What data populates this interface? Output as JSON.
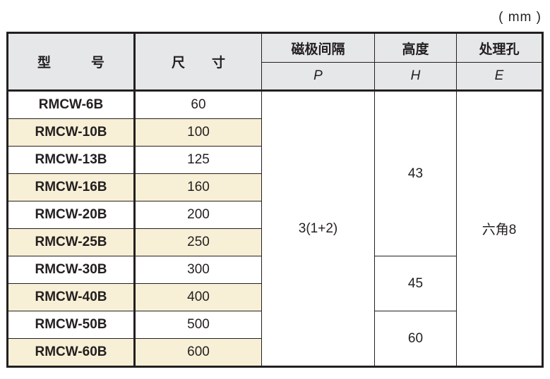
{
  "unit": "( mm )",
  "headers": {
    "model": "型　　　号",
    "size": "尺　　寸",
    "pitch": "磁极间隔",
    "pitch_sym": "P",
    "height": "高度",
    "height_sym": "H",
    "hole": "处理孔",
    "hole_sym": "E"
  },
  "rows": [
    {
      "model": "RMCW-6B",
      "size": "60"
    },
    {
      "model": "RMCW-10B",
      "size": "100"
    },
    {
      "model": "RMCW-13B",
      "size": "125"
    },
    {
      "model": "RMCW-16B",
      "size": "160"
    },
    {
      "model": "RMCW-20B",
      "size": "200"
    },
    {
      "model": "RMCW-25B",
      "size": "250"
    },
    {
      "model": "RMCW-30B",
      "size": "300"
    },
    {
      "model": "RMCW-40B",
      "size": "400"
    },
    {
      "model": "RMCW-50B",
      "size": "500"
    },
    {
      "model": "RMCW-60B",
      "size": "600"
    }
  ],
  "merged": {
    "pitch": "3(1+2)",
    "height_a": "43",
    "height_b": "45",
    "height_c": "60",
    "hole": "六角8"
  },
  "colors": {
    "header_bg": "#e6e7e9",
    "alt_row": "#f8f0d6"
  }
}
